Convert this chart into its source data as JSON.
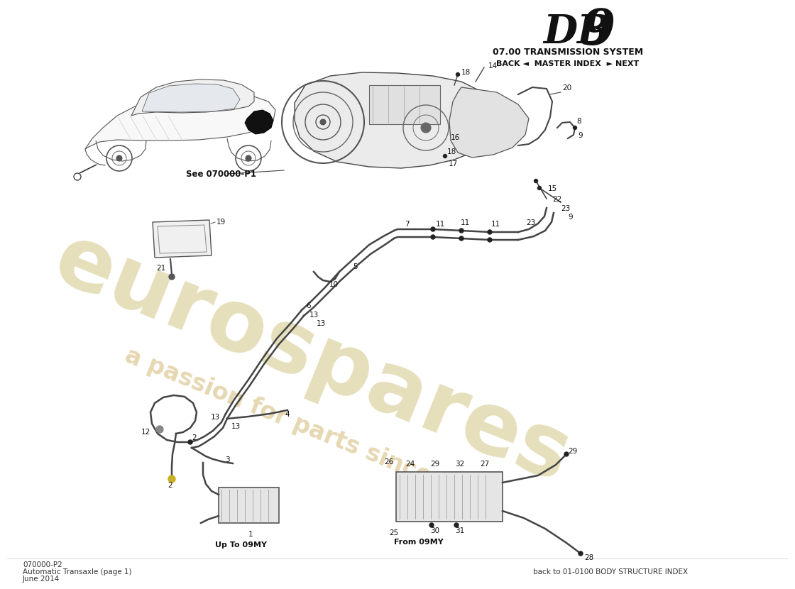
{
  "title_db": "DB",
  "title_9": "9",
  "subtitle": "07.00 TRANSMISSION SYSTEM",
  "nav_text": "BACK ◄  MASTER INDEX  ► NEXT",
  "page_code": "070000-P2",
  "page_title": "Automatic Transaxle (page 1)",
  "page_date": "June 2014",
  "footer_right": "back to 01-0100 BODY STRUCTURE INDEX",
  "see_ref": "See 070000-P1",
  "up_to_label": "Up To 09MY",
  "from_label": "From 09MY",
  "bg_color": "#ffffff",
  "line_color": "#222222",
  "wm_color1": "#c8b86a",
  "wm_color2": "#c8a855"
}
